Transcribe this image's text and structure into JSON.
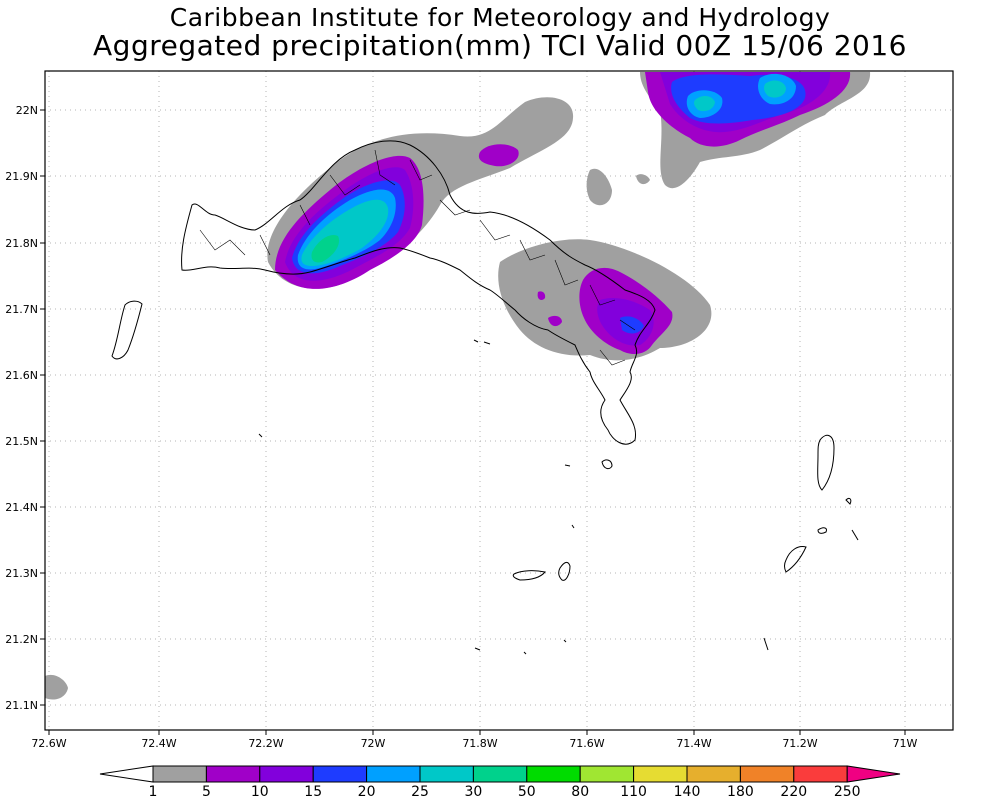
{
  "header": {
    "institution": "Caribbean Institute for Meteorology and Hydrology",
    "product": "Aggregated precipitation(mm) TCI Valid 00Z 15/06 2016"
  },
  "axes": {
    "x_ticks": [
      "72.6W",
      "72.4W",
      "72.2W",
      "72W",
      "71.8W",
      "71.6W",
      "71.4W",
      "71.2W",
      "71W"
    ],
    "y_ticks": [
      "22N",
      "21.9N",
      "21.8N",
      "21.7N",
      "21.6N",
      "21.5N",
      "21.4N",
      "21.3N",
      "21.2N",
      "21.1N"
    ]
  },
  "colorbar": {
    "labels": [
      "1",
      "5",
      "10",
      "15",
      "20",
      "25",
      "30",
      "50",
      "80",
      "110",
      "140",
      "180",
      "220",
      "250"
    ],
    "colors": [
      "#a0a0a0",
      "#a000c8",
      "#8200dc",
      "#1e3cff",
      "#00a0ff",
      "#00c8c8",
      "#00d28c",
      "#00dc00",
      "#a0e632",
      "#e6dc32",
      "#e6af2d",
      "#f08228",
      "#fa3c3c",
      "#f00082"
    ]
  },
  "colors": {
    "precip_1": "#a0a0a0",
    "precip_5": "#a000c8",
    "precip_10": "#8200dc",
    "precip_15": "#1e3cff",
    "precip_20": "#00a0ff",
    "precip_25": "#00c8c8",
    "precip_30": "#00d28c"
  }
}
